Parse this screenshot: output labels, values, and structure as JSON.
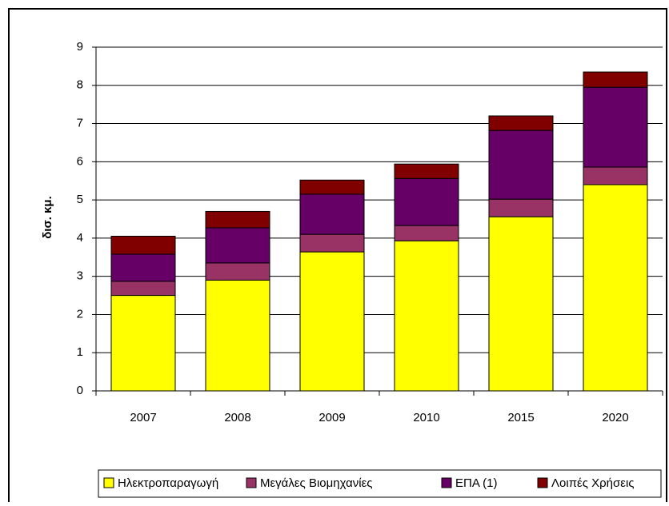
{
  "chart_data": {
    "type": "stacked_bar",
    "ylabel": "δισ. κμ.",
    "categories": [
      "2007",
      "2008",
      "2009",
      "2010",
      "2015",
      "2020"
    ],
    "series": [
      {
        "name": "Ηλεκτροπαραγωγή",
        "color": "#ffff00",
        "values": [
          2.5,
          2.9,
          3.64,
          3.93,
          4.56,
          5.4
        ]
      },
      {
        "name": "Μεγάλες Βιομηχανίες",
        "color": "#993366",
        "values": [
          0.37,
          0.45,
          0.46,
          0.4,
          0.46,
          0.46
        ]
      },
      {
        "name": "ΕΠΑ (1)",
        "color": "#660066",
        "values": [
          0.71,
          0.92,
          1.05,
          1.23,
          1.8,
          2.09
        ]
      },
      {
        "name": "Λοιπές Χρήσεις",
        "color": "#800000",
        "values": [
          0.47,
          0.43,
          0.37,
          0.38,
          0.38,
          0.4
        ]
      }
    ],
    "ylim": [
      0,
      9
    ],
    "yticks": [
      0,
      1,
      2,
      3,
      4,
      5,
      6,
      7,
      8,
      9
    ],
    "grid": true,
    "legend": "bottom"
  }
}
